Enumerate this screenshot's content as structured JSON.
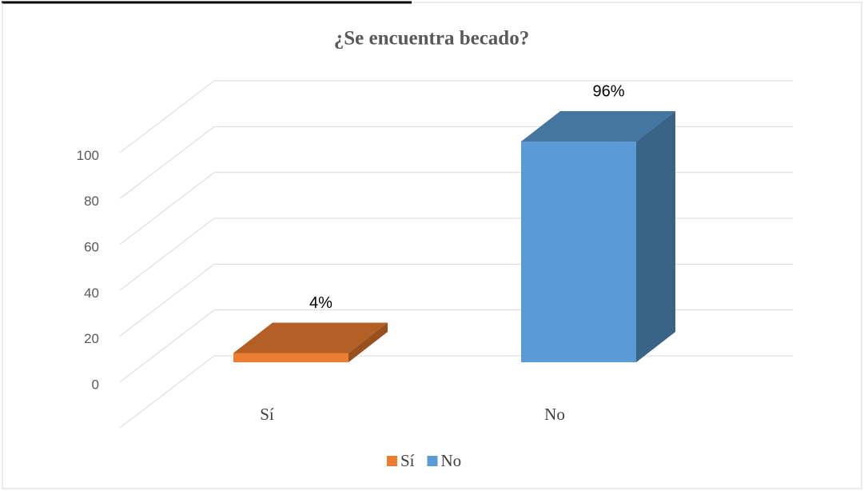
{
  "chart_data": {
    "type": "bar3d",
    "title": "¿Se encuentra becado?",
    "categories": [
      "Sí",
      "No"
    ],
    "series": [
      {
        "name": "Sí",
        "color": "#ed7d31"
      },
      {
        "name": "No",
        "color": "#5b9bd5"
      }
    ],
    "values": [
      4,
      96
    ],
    "value_labels": [
      "4%",
      "96%"
    ],
    "ylim": [
      0,
      120
    ],
    "yticks": [
      0,
      20,
      40,
      60,
      80,
      100
    ],
    "grid": true,
    "legend": "bottom"
  }
}
